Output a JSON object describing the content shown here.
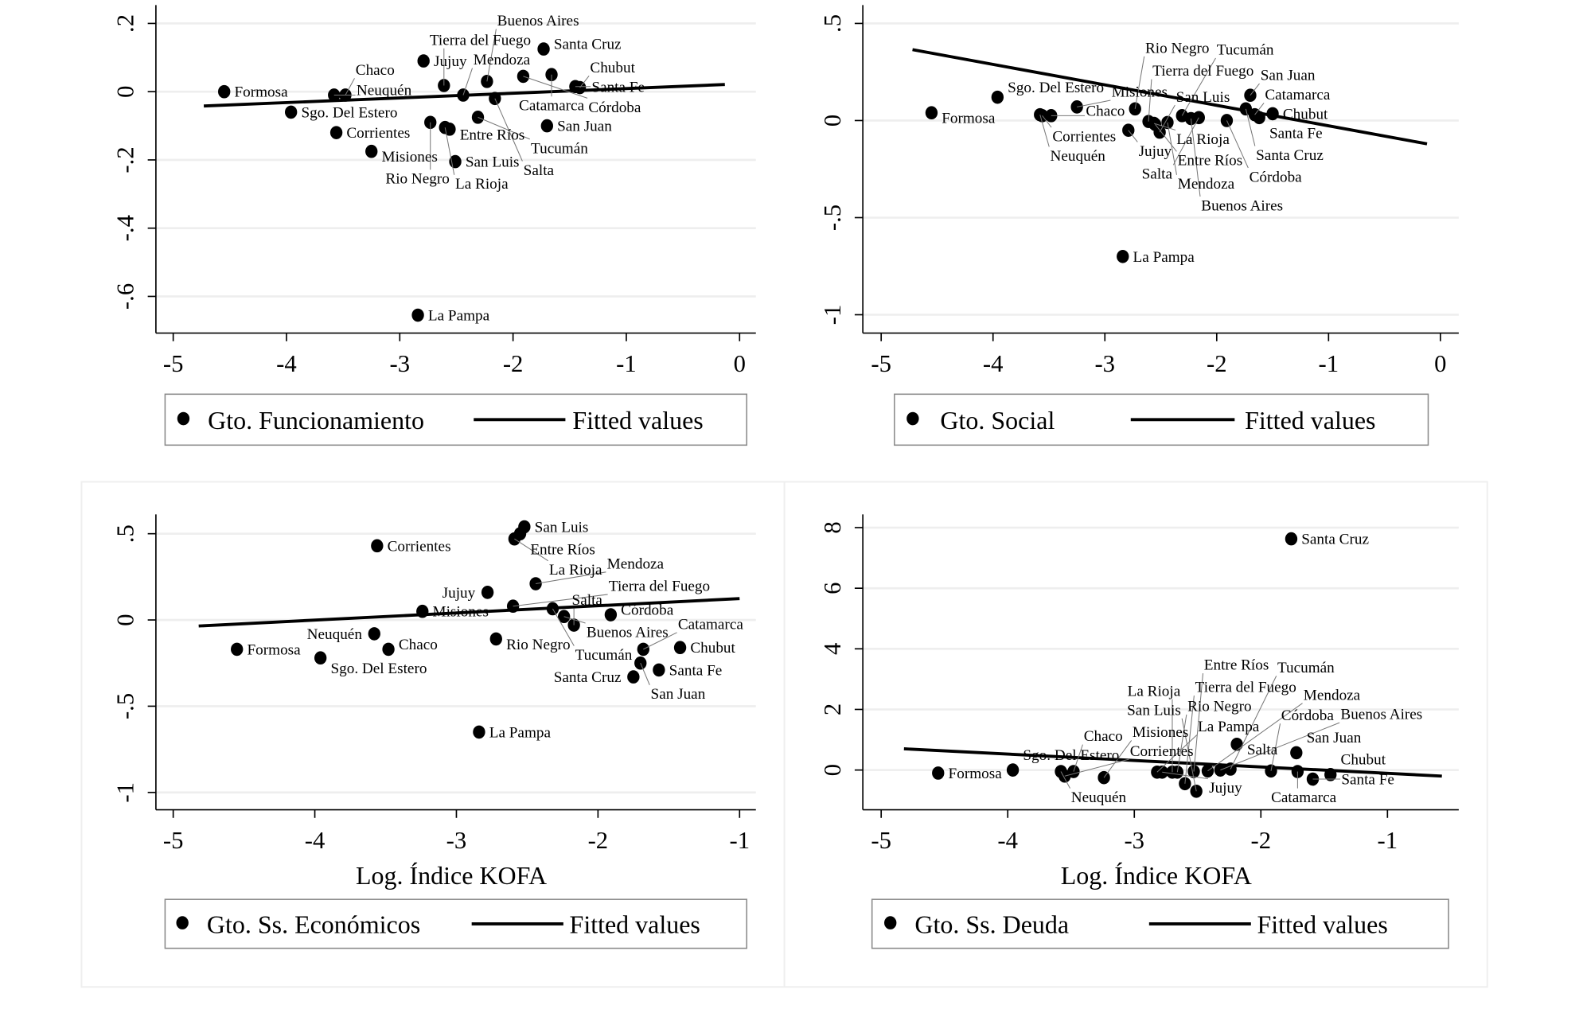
{
  "chart_data": [
    {
      "type": "scatter",
      "xlabel": "",
      "xlim": [
        -5,
        0
      ],
      "ylim": [
        -0.66,
        0.2
      ],
      "x_ticks": [
        -5,
        -4,
        -3,
        -2,
        -1,
        0
      ],
      "x_tick_labels": [
        "-5",
        "-4",
        "-3",
        "-2",
        "-1",
        "0"
      ],
      "y_ticks": [
        0.2,
        0,
        -0.2,
        -0.4,
        -0.6
      ],
      "y_tick_labels": [
        ".2",
        "0",
        "-.2",
        "-.4",
        "-.6"
      ],
      "grid": true,
      "legend": {
        "placement": "bottom",
        "entries": [
          "Gto. Funcionamiento",
          "Fitted values"
        ]
      },
      "points": [
        {
          "label": "Formosa",
          "x": -4.55,
          "y": 0.0
        },
        {
          "label": "Sgo. Del Estero",
          "x": -3.96,
          "y": -0.06
        },
        {
          "label": "Neuquén",
          "x": -3.58,
          "y": -0.01
        },
        {
          "label": "Chaco",
          "x": -3.48,
          "y": -0.01
        },
        {
          "label": "Corrientes",
          "x": -3.56,
          "y": -0.12
        },
        {
          "label": "Misiones",
          "x": -3.25,
          "y": -0.175
        },
        {
          "label": "Jujuy",
          "x": -2.79,
          "y": 0.09
        },
        {
          "label": "Tierra del Fuego",
          "x": -2.61,
          "y": 0.018
        },
        {
          "label": "Rio Negro",
          "x": -2.73,
          "y": -0.09
        },
        {
          "label": "La Rioja",
          "x": -2.6,
          "y": -0.105
        },
        {
          "label": "Entre Ríos",
          "x": -2.56,
          "y": -0.11
        },
        {
          "label": "San Luis",
          "x": -2.51,
          "y": -0.205
        },
        {
          "label": "La Pampa",
          "x": -2.84,
          "y": -0.655
        },
        {
          "label": "Mendoza",
          "x": -2.44,
          "y": -0.01
        },
        {
          "label": "Tucumán",
          "x": -2.31,
          "y": -0.075
        },
        {
          "label": "Salta",
          "x": -2.16,
          "y": -0.02
        },
        {
          "label": "Buenos Aires",
          "x": -2.23,
          "y": 0.03
        },
        {
          "label": "Córdoba",
          "x": -1.91,
          "y": 0.045
        },
        {
          "label": "Santa Cruz",
          "x": -1.73,
          "y": 0.125
        },
        {
          "label": "Catamarca",
          "x": -1.66,
          "y": 0.05
        },
        {
          "label": "San Juan",
          "x": -1.7,
          "y": -0.1
        },
        {
          "label": "Santa Fe",
          "x": -1.45,
          "y": 0.015
        },
        {
          "label": "Chubut",
          "x": -1.41,
          "y": 0.012
        }
      ],
      "fit": {
        "x": [
          -4.73,
          -0.13
        ],
        "y": [
          -0.042,
          0.021
        ]
      }
    },
    {
      "type": "scatter",
      "xlabel": "",
      "xlim": [
        -5,
        0
      ],
      "ylim": [
        -1.1,
        0.55
      ],
      "x_ticks": [
        -5,
        -4,
        -3,
        -2,
        -1,
        0
      ],
      "x_tick_labels": [
        "-5",
        "-4",
        "-3",
        "-2",
        "-1",
        "0"
      ],
      "y_ticks": [
        0.5,
        0,
        -0.5,
        -1
      ],
      "y_tick_labels": [
        ".5",
        "0",
        "-.5",
        "-1"
      ],
      "grid": true,
      "legend": {
        "placement": "bottom",
        "entries": [
          "Gto. Social",
          "Fitted values"
        ]
      },
      "points": [
        {
          "label": "Formosa",
          "x": -4.55,
          "y": 0.04
        },
        {
          "label": "Sgo. Del Estero",
          "x": -3.96,
          "y": 0.12
        },
        {
          "label": "Corrientes",
          "x": -3.56,
          "y": 0.025
        },
        {
          "label": "Chaco",
          "x": -3.48,
          "y": 0.025
        },
        {
          "label": "Misiones",
          "x": -3.25,
          "y": 0.07
        },
        {
          "label": "Neuquén",
          "x": -3.58,
          "y": 0.03
        },
        {
          "label": "Rio Negro",
          "x": -2.73,
          "y": 0.06
        },
        {
          "label": "Jujuy",
          "x": -2.79,
          "y": -0.05
        },
        {
          "label": "La Pampa",
          "x": -2.84,
          "y": -0.7
        },
        {
          "label": "Tierra del Fuego",
          "x": -2.61,
          "y": -0.005
        },
        {
          "label": "La Rioja",
          "x": -2.56,
          "y": -0.015
        },
        {
          "label": "Entre Ríos",
          "x": -2.55,
          "y": -0.02
        },
        {
          "label": "San Luis",
          "x": -2.51,
          "y": -0.06
        },
        {
          "label": "Tucumán",
          "x": -2.31,
          "y": 0.025
        },
        {
          "label": "Mendoza",
          "x": -2.44,
          "y": -0.01
        },
        {
          "label": "Salta",
          "x": -2.16,
          "y": 0.015
        },
        {
          "label": "Buenos Aires",
          "x": -2.23,
          "y": 0.01
        },
        {
          "label": "Córdoba",
          "x": -1.91,
          "y": 0.0
        },
        {
          "label": "San Juan",
          "x": -1.7,
          "y": 0.13
        },
        {
          "label": "Santa Cruz",
          "x": -1.74,
          "y": 0.06
        },
        {
          "label": "Catamarca",
          "x": -1.66,
          "y": 0.03
        },
        {
          "label": "Santa Fe",
          "x": -1.62,
          "y": 0.015
        },
        {
          "label": "Chubut",
          "x": -1.5,
          "y": 0.035
        }
      ],
      "fit": {
        "x": [
          -4.72,
          -0.12
        ],
        "y": [
          0.365,
          -0.12
        ]
      }
    },
    {
      "type": "scatter",
      "xlabel": "Log. Índice KOFA",
      "xlim": [
        -5,
        -1
      ],
      "ylim": [
        -1.1,
        0.6
      ],
      "x_ticks": [
        -5,
        -4,
        -3,
        -2,
        -1
      ],
      "x_tick_labels": [
        "-5",
        "-4",
        "-3",
        "-2",
        "-1"
      ],
      "y_ticks": [
        0.5,
        0,
        -0.5,
        -1
      ],
      "y_tick_labels": [
        ".5",
        "0",
        "-.5",
        "-1"
      ],
      "grid": true,
      "legend": {
        "placement": "bottom",
        "entries": [
          "Gto. Ss. Económicos",
          "Fitted values"
        ]
      },
      "points": [
        {
          "label": "Formosa",
          "x": -4.55,
          "y": -0.17
        },
        {
          "label": "Sgo. Del Estero",
          "x": -3.96,
          "y": -0.22
        },
        {
          "label": "Neuquén",
          "x": -3.58,
          "y": -0.08
        },
        {
          "label": "Chaco",
          "x": -3.48,
          "y": -0.17
        },
        {
          "label": "Corrientes",
          "x": -3.56,
          "y": 0.43
        },
        {
          "label": "Misiones",
          "x": -3.24,
          "y": 0.05
        },
        {
          "label": "Jujuy",
          "x": -2.78,
          "y": 0.16
        },
        {
          "label": "La Pampa",
          "x": -2.84,
          "y": -0.65
        },
        {
          "label": "Tierra del Fuego",
          "x": -2.6,
          "y": 0.08
        },
        {
          "label": "Rio Negro",
          "x": -2.72,
          "y": -0.11
        },
        {
          "label": "San Luis",
          "x": -2.52,
          "y": 0.54
        },
        {
          "label": "Entre Ríos",
          "x": -2.55,
          "y": 0.5
        },
        {
          "label": "La Rioja",
          "x": -2.59,
          "y": 0.47
        },
        {
          "label": "Mendoza",
          "x": -2.44,
          "y": 0.21
        },
        {
          "label": "Tucumán",
          "x": -2.32,
          "y": 0.065
        },
        {
          "label": "Buenos Aires",
          "x": -2.24,
          "y": 0.02
        },
        {
          "label": "Salta",
          "x": -2.17,
          "y": -0.03
        },
        {
          "label": "Córdoba",
          "x": -1.91,
          "y": 0.03
        },
        {
          "label": "Catamarca",
          "x": -1.68,
          "y": -0.17
        },
        {
          "label": "San Juan",
          "x": -1.7,
          "y": -0.25
        },
        {
          "label": "Santa Cruz",
          "x": -1.75,
          "y": -0.33
        },
        {
          "label": "Santa Fe",
          "x": -1.57,
          "y": -0.29
        },
        {
          "label": "Chubut",
          "x": -1.42,
          "y": -0.16
        }
      ],
      "fit": {
        "x": [
          -4.82,
          -1.0
        ],
        "y": [
          -0.035,
          0.124
        ]
      }
    },
    {
      "type": "scatter",
      "xlabel": "Log. Índice KOFA",
      "xlim": [
        -5,
        -0.5
      ],
      "ylim": [
        -1.3,
        8.2
      ],
      "x_ticks": [
        -5,
        -4,
        -3,
        -2,
        -1
      ],
      "x_tick_labels": [
        "-5",
        "-4",
        "-3",
        "-2",
        "-1"
      ],
      "y_ticks": [
        0,
        2,
        4,
        6,
        8
      ],
      "y_tick_labels": [
        "0",
        "2",
        "4",
        "6",
        "8"
      ],
      "grid": true,
      "legend": {
        "placement": "bottom",
        "entries": [
          "Gto. Ss. Deuda",
          "Fitted values"
        ]
      },
      "points": [
        {
          "label": "Formosa",
          "x": -4.55,
          "y": -0.1
        },
        {
          "label": "Sgo. Del Estero",
          "x": -3.96,
          "y": 0.0
        },
        {
          "label": "Neuquén",
          "x": -3.58,
          "y": -0.05
        },
        {
          "label": "Chaco",
          "x": -3.48,
          "y": -0.05
        },
        {
          "label": "Corrientes",
          "x": -3.55,
          "y": -0.2
        },
        {
          "label": "Misiones",
          "x": -3.24,
          "y": -0.25
        },
        {
          "label": "Jujuy",
          "x": -2.78,
          "y": -0.07
        },
        {
          "label": "La Pampa",
          "x": -2.82,
          "y": -0.07
        },
        {
          "label": "La Rioja",
          "x": -2.7,
          "y": -0.07
        },
        {
          "label": "Rio Negro",
          "x": -2.66,
          "y": -0.07
        },
        {
          "label": "Tierra del Fuego",
          "x": -2.6,
          "y": -0.45
        },
        {
          "label": "San Luis",
          "x": -2.51,
          "y": -0.7
        },
        {
          "label": "Entre Ríos",
          "x": -2.53,
          "y": -0.05
        },
        {
          "label": "Mendoza",
          "x": -2.42,
          "y": -0.03
        },
        {
          "label": "Buenos Aires",
          "x": -2.32,
          "y": 0.0
        },
        {
          "label": "Tucumán",
          "x": -2.24,
          "y": 0.03
        },
        {
          "label": "Córdoba",
          "x": -1.92,
          "y": -0.03
        },
        {
          "label": "Salta",
          "x": -2.19,
          "y": 0.85
        },
        {
          "label": "San Juan",
          "x": -1.72,
          "y": 0.57
        },
        {
          "label": "Santa Cruz",
          "x": -1.76,
          "y": 7.63
        },
        {
          "label": "Catamarca",
          "x": -1.71,
          "y": -0.05
        },
        {
          "label": "Santa Fe",
          "x": -1.59,
          "y": -0.3
        },
        {
          "label": "Chubut",
          "x": -1.45,
          "y": -0.15
        }
      ],
      "fit": {
        "x": [
          -4.82,
          -0.57
        ],
        "y": [
          0.7,
          -0.2
        ]
      }
    }
  ]
}
